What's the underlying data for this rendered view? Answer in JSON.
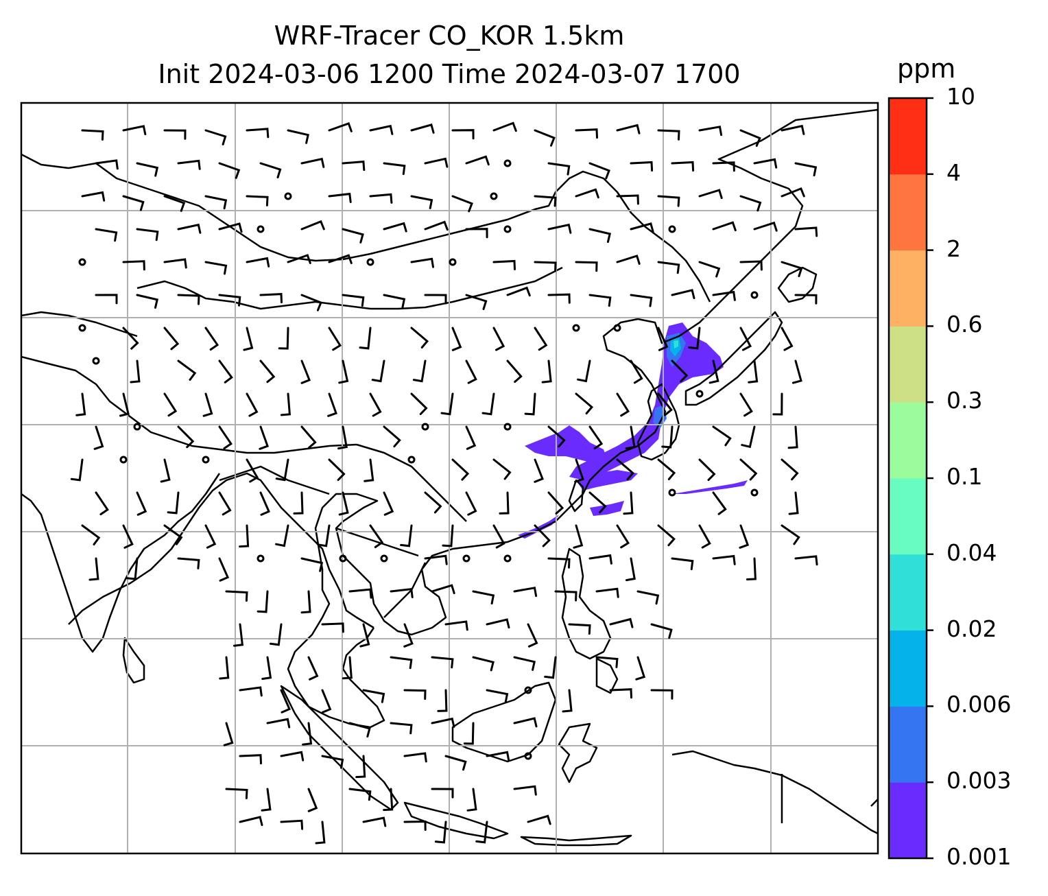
{
  "title": {
    "line1": "WRF-Tracer CO_KOR 1.5km",
    "line2": "Init 2024-03-06 1200 Time 2024-03-07 1700"
  },
  "colorbar": {
    "units": "ppm",
    "ticks": [
      "0.001",
      "0.003",
      "0.006",
      "0.02",
      "0.04",
      "0.1",
      "0.3",
      "0.6",
      "2",
      "4",
      "10"
    ],
    "colors": [
      "#6a2bff",
      "#3575f2",
      "#05b2ea",
      "#30e0d8",
      "#68fcc0",
      "#9afc9a",
      "#cde086",
      "#feb063",
      "#ff7540",
      "#ff2f16"
    ]
  },
  "map": {
    "variable": "CO tracer concentration",
    "overlay": "wind barbs",
    "gridlines": true,
    "plume_colors": [
      "#6a2bff",
      "#3575f2",
      "#05b2ea",
      "#30e0d8"
    ]
  }
}
